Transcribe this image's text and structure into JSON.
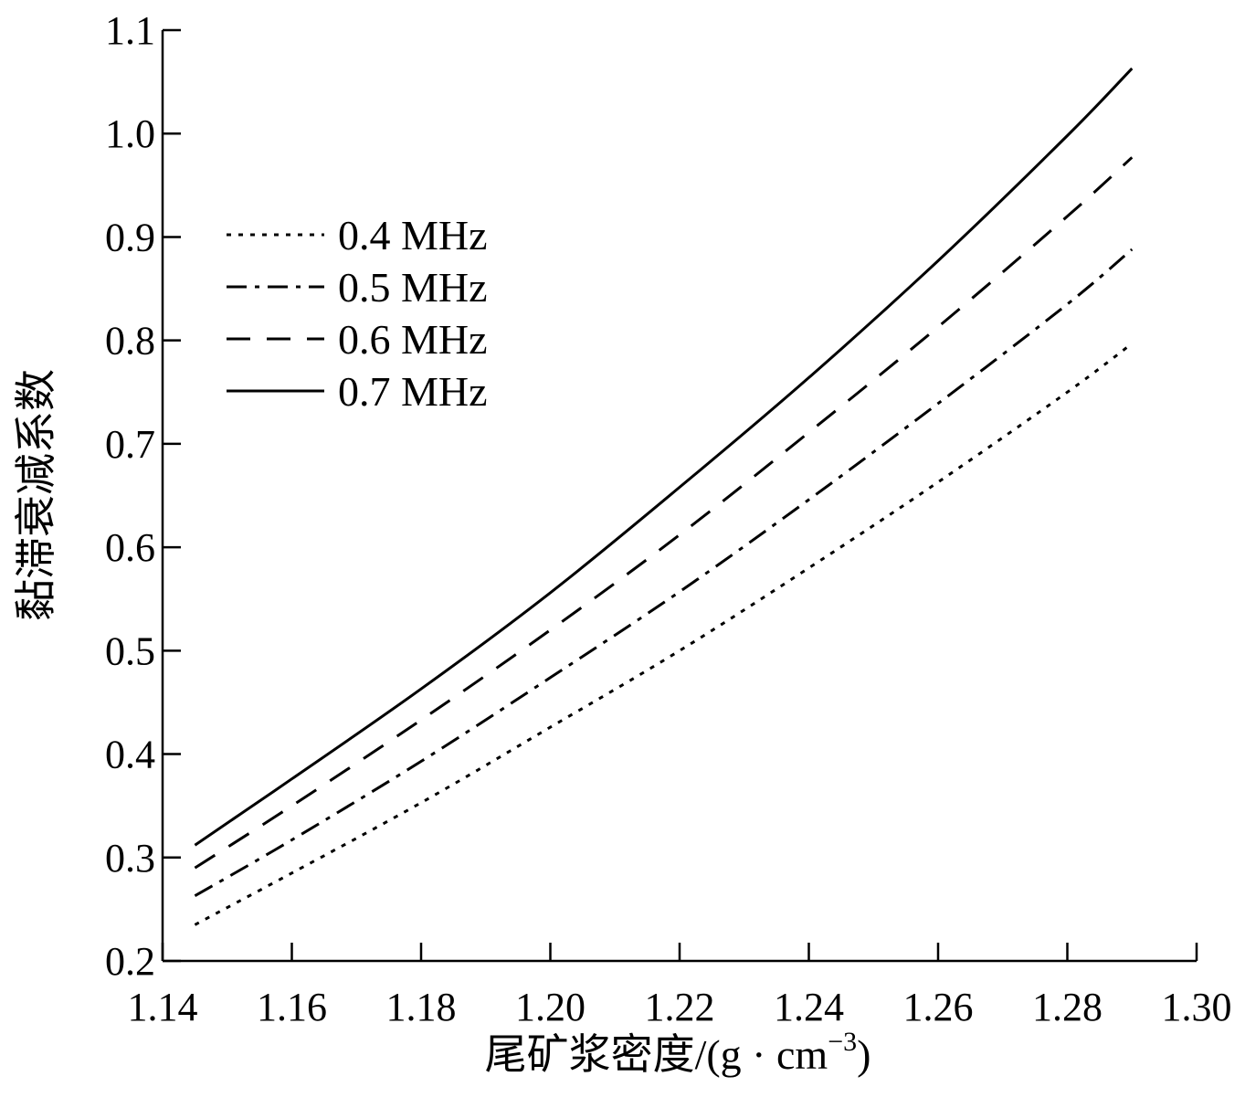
{
  "chart_data": {
    "type": "line",
    "title": "",
    "xlabel": "尾矿浆密度/(g · cm",
    "xlabel_sup": "−3",
    "xlabel_end": ")",
    "ylabel": "黏滞衰减系数",
    "xlim": [
      1.14,
      1.3
    ],
    "ylim": [
      0.2,
      1.1
    ],
    "x_ticks": [
      1.14,
      1.16,
      1.18,
      1.2,
      1.22,
      1.24,
      1.26,
      1.28,
      1.3
    ],
    "x_tick_labels": [
      "1.14",
      "1.16",
      "1.18",
      "1.20",
      "1.22",
      "1.24",
      "1.26",
      "1.28",
      "1.30"
    ],
    "y_ticks": [
      0.2,
      0.3,
      0.4,
      0.5,
      0.6,
      0.7,
      0.8,
      0.9,
      1.0,
      1.1
    ],
    "y_tick_labels": [
      "0.2",
      "0.3",
      "0.4",
      "0.5",
      "0.6",
      "0.7",
      "0.8",
      "0.9",
      "1.0",
      "1.1"
    ],
    "grid": false,
    "legend_position": "upper-left",
    "x": [
      1.145,
      1.16,
      1.18,
      1.2,
      1.22,
      1.24,
      1.26,
      1.28,
      1.29
    ],
    "series": [
      {
        "name": "0.4 MHz",
        "dash": "dotted",
        "color": "#000000",
        "values": [
          0.235,
          0.285,
          0.353,
          0.426,
          0.5,
          0.58,
          0.663,
          0.75,
          0.797
        ]
      },
      {
        "name": "0.5 MHz",
        "dash": "dashdot",
        "color": "#000000",
        "values": [
          0.263,
          0.317,
          0.393,
          0.474,
          0.557,
          0.646,
          0.739,
          0.835,
          0.888
        ]
      },
      {
        "name": "0.6 MHz",
        "dash": "dashed",
        "color": "#000000",
        "values": [
          0.29,
          0.35,
          0.433,
          0.52,
          0.612,
          0.711,
          0.813,
          0.92,
          0.977
        ]
      },
      {
        "name": "0.7 MHz",
        "dash": "solid",
        "color": "#000000",
        "values": [
          0.312,
          0.376,
          0.463,
          0.556,
          0.658,
          0.764,
          0.877,
          0.998,
          1.063
        ]
      }
    ]
  }
}
